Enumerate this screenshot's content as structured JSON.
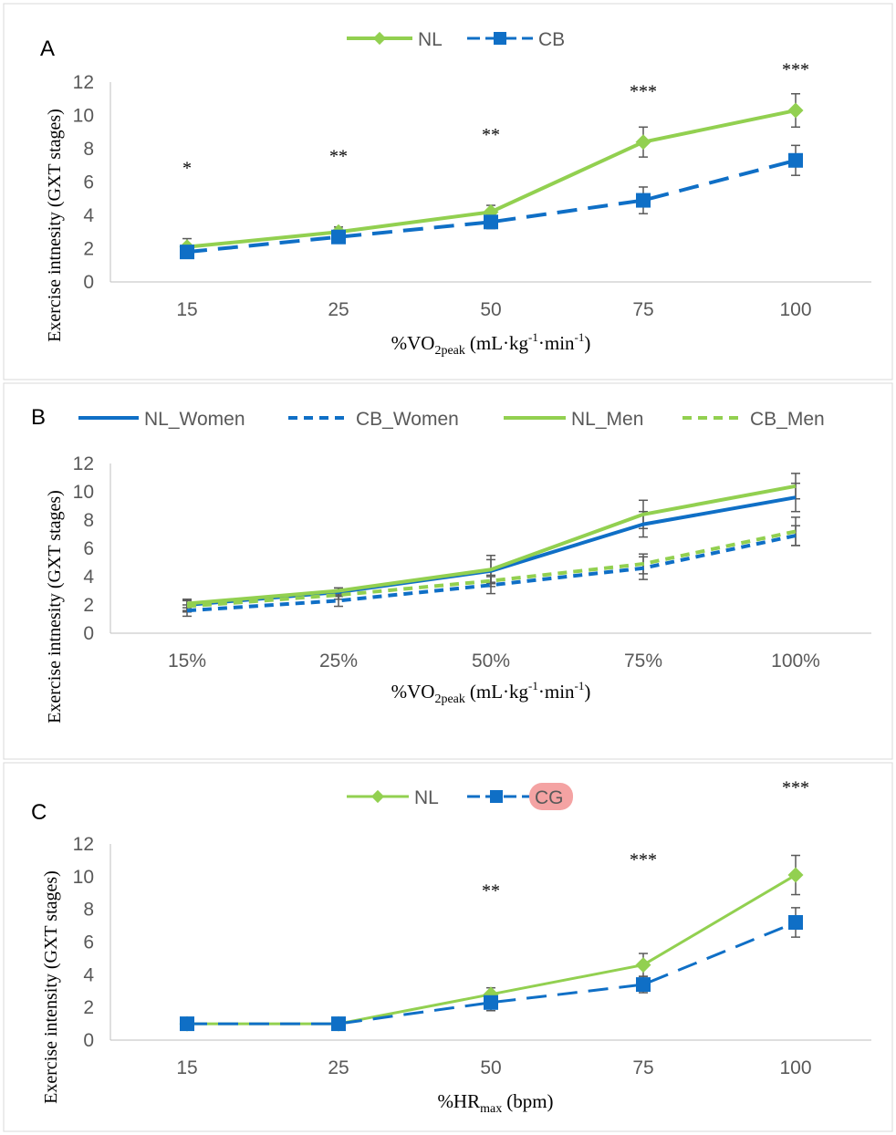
{
  "colors": {
    "nl": "#92d050",
    "cb": "#0f6fc6",
    "axis": "#bfbfbf",
    "text": "#595959",
    "error_bar": "#595959",
    "highlight": "#f4a3a3"
  },
  "chart_data": [
    {
      "type": "line",
      "panel_label": "A",
      "xlabel": "%VO",
      "xlabel_sub": "2peak",
      "xlabel_unit": "(mL·kg",
      "xlabel_sup1": "-1",
      "xlabel_mid": "·min",
      "xlabel_sup2": "-1",
      "xlabel_end": ")",
      "ylabel": "Exercise intnesity (GXT stages)",
      "categories": [
        "15",
        "25",
        "50",
        "75",
        "100"
      ],
      "ylim": [
        0,
        12
      ],
      "yticks": [
        "0",
        "2",
        "4",
        "6",
        "8",
        "10",
        "12"
      ],
      "legend_position": "top",
      "series": [
        {
          "name": "NL",
          "values": [
            2.1,
            3.0,
            4.2,
            8.4,
            10.3
          ],
          "errors": [
            0.5,
            0.3,
            0.4,
            0.9,
            1.0
          ],
          "style": "solid",
          "marker": "diamond",
          "color": "#92d050"
        },
        {
          "name": "CB",
          "values": [
            1.8,
            2.7,
            3.6,
            4.9,
            7.3
          ],
          "errors": [
            0.3,
            0.3,
            0.4,
            0.8,
            0.9
          ],
          "style": "dash",
          "marker": "square",
          "color": "#0f6fc6"
        }
      ],
      "annotations": [
        {
          "category": "15",
          "text": "*",
          "y": 6.5
        },
        {
          "category": "25",
          "text": "**",
          "y": 7.2
        },
        {
          "category": "50",
          "text": "**",
          "y": 8.5
        },
        {
          "category": "75",
          "text": "***",
          "y": 11.1
        },
        {
          "category": "100",
          "text": "***",
          "y": 12.4
        }
      ]
    },
    {
      "type": "line",
      "panel_label": "B",
      "xlabel": "%VO",
      "xlabel_sub": "2peak",
      "xlabel_unit": "(mL·kg",
      "xlabel_sup1": "-1",
      "xlabel_mid": "·min",
      "xlabel_sup2": "-1",
      "xlabel_end": ")",
      "ylabel": "Exercise intnesity (GXT stages)",
      "categories": [
        "15%",
        "25%",
        "50%",
        "75%",
        "100%"
      ],
      "ylim": [
        0,
        12
      ],
      "yticks": [
        "0",
        "2",
        "4",
        "6",
        "8",
        "10",
        "12"
      ],
      "legend_position": "top",
      "series": [
        {
          "name": "NL_Women",
          "values": [
            2.0,
            2.9,
            4.4,
            7.7,
            9.6
          ],
          "errors": [
            0.4,
            0.3,
            0.8,
            0.9,
            1.0
          ],
          "style": "solid",
          "marker": "none",
          "color": "#0f6fc6"
        },
        {
          "name": "CB_Women",
          "values": [
            1.6,
            2.3,
            3.4,
            4.6,
            6.9
          ],
          "errors": [
            0.4,
            0.4,
            0.6,
            0.8,
            0.7
          ],
          "style": "shortdash",
          "marker": "none",
          "color": "#0f6fc6"
        },
        {
          "name": "NL_Men",
          "values": [
            2.1,
            3.0,
            4.5,
            8.4,
            10.4
          ],
          "errors": [
            0.3,
            0.2,
            1.0,
            1.0,
            0.9
          ],
          "style": "solid",
          "marker": "none",
          "color": "#92d050"
        },
        {
          "name": "CB_Men",
          "values": [
            1.9,
            2.7,
            3.7,
            4.9,
            7.2
          ],
          "errors": [
            0.4,
            0.3,
            0.4,
            0.7,
            1.0
          ],
          "style": "shortdash",
          "marker": "none",
          "color": "#92d050"
        }
      ]
    },
    {
      "type": "line",
      "panel_label": "C",
      "xlabel": "%HR",
      "xlabel_sub": "max",
      "xlabel_unit": "(bpm)",
      "ylabel": "Exercise intensity (GXT stages)",
      "categories": [
        "15",
        "25",
        "50",
        "75",
        "100"
      ],
      "ylim": [
        0,
        12
      ],
      "yticks": [
        "0",
        "2",
        "4",
        "6",
        "8",
        "10",
        "12"
      ],
      "legend_position": "top",
      "series": [
        {
          "name": "NL",
          "values": [
            1.0,
            1.0,
            2.8,
            4.6,
            10.1
          ],
          "errors": [
            0,
            0,
            0.4,
            0.7,
            1.2
          ],
          "style": "solid",
          "marker": "diamond",
          "color": "#92d050"
        },
        {
          "name": "CG",
          "values": [
            1.0,
            1.0,
            2.3,
            3.4,
            7.2
          ],
          "errors": [
            0,
            0,
            0.5,
            0.5,
            0.9
          ],
          "style": "dash",
          "marker": "square",
          "color": "#0f6fc6",
          "highlighted": true
        }
      ],
      "annotations": [
        {
          "category": "50",
          "text": "**",
          "y": 8.8
        },
        {
          "category": "75",
          "text": "***",
          "y": 10.7
        },
        {
          "category": "100",
          "text": "***",
          "y": 15.1
        }
      ]
    }
  ]
}
